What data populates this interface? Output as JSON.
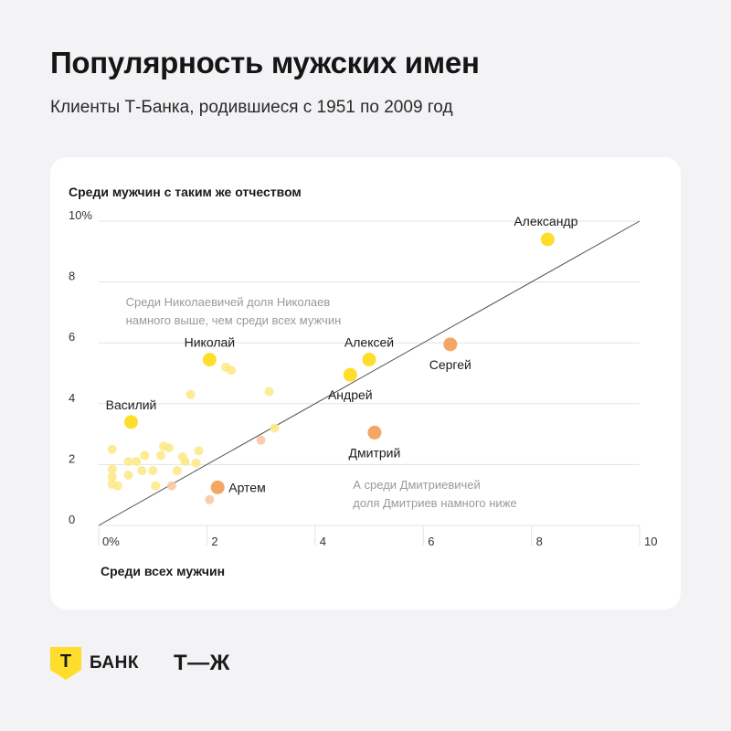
{
  "header": {
    "title": "Популярность мужских имен",
    "subtitle": "Клиенты Т-Банка, родившиеся с 1951 по 2009 год"
  },
  "footer": {
    "tbank_mark": "Т",
    "tbank_name": "БАНК",
    "tj_logo": "Т—Ж"
  },
  "colors": {
    "yellow": "#ffdd2d",
    "orange": "#f5a664",
    "faint_yellow": "#fde98a",
    "faint_orange": "#f8c9a7",
    "gridline": "#e3e3e3",
    "diagonal": "#555555",
    "annotation": "#9a9a9a"
  },
  "chart_data": {
    "type": "scatter",
    "title": "",
    "ylabel": "Среди мужчин с таким же отчеством",
    "xlabel": "Среди всех мужчин",
    "xlim": [
      0,
      10
    ],
    "ylim": [
      0,
      10
    ],
    "x_ticks": [
      {
        "value": 0,
        "label": "0%"
      },
      {
        "value": 2,
        "label": "2"
      },
      {
        "value": 4,
        "label": "4"
      },
      {
        "value": 6,
        "label": "6"
      },
      {
        "value": 8,
        "label": "8"
      },
      {
        "value": 10,
        "label": "10"
      }
    ],
    "y_ticks": [
      {
        "value": 0,
        "label": "0"
      },
      {
        "value": 2,
        "label": "2"
      },
      {
        "value": 4,
        "label": "4"
      },
      {
        "value": 6,
        "label": "6"
      },
      {
        "value": 8,
        "label": "8"
      },
      {
        "value": 10,
        "label": "10%"
      }
    ],
    "reference_line": {
      "type": "diagonal",
      "from": [
        0,
        0
      ],
      "to": [
        10,
        10
      ]
    },
    "points": [
      {
        "name": "Александр",
        "x": 8.3,
        "y": 9.4,
        "color": "yellow",
        "label_pos": "above-left"
      },
      {
        "name": "Николай",
        "x": 2.05,
        "y": 5.45,
        "color": "yellow",
        "label_pos": "above"
      },
      {
        "name": "Алексей",
        "x": 5.0,
        "y": 5.45,
        "color": "yellow",
        "label_pos": "above"
      },
      {
        "name": "Андрей",
        "x": 4.65,
        "y": 4.95,
        "color": "yellow",
        "label_pos": "below"
      },
      {
        "name": "Василий",
        "x": 0.6,
        "y": 3.4,
        "color": "yellow",
        "label_pos": "above"
      },
      {
        "name": "Сергей",
        "x": 6.5,
        "y": 5.95,
        "color": "orange",
        "label_pos": "below"
      },
      {
        "name": "Дмитрий",
        "x": 5.1,
        "y": 3.05,
        "color": "orange",
        "label_pos": "below"
      },
      {
        "name": "Артем",
        "x": 2.2,
        "y": 1.25,
        "color": "orange",
        "label_pos": "right"
      }
    ],
    "minor_points": [
      {
        "x": 1.7,
        "y": 4.3,
        "color": "faint_yellow"
      },
      {
        "x": 2.35,
        "y": 5.2,
        "color": "faint_yellow"
      },
      {
        "x": 2.45,
        "y": 5.1,
        "color": "faint_yellow"
      },
      {
        "x": 3.15,
        "y": 4.4,
        "color": "faint_yellow"
      },
      {
        "x": 3.25,
        "y": 3.2,
        "color": "faint_yellow"
      },
      {
        "x": 3.0,
        "y": 2.8,
        "color": "faint_orange"
      },
      {
        "x": 2.05,
        "y": 0.85,
        "color": "faint_orange"
      },
      {
        "x": 1.35,
        "y": 1.3,
        "color": "faint_orange"
      },
      {
        "x": 0.25,
        "y": 2.5,
        "color": "faint_yellow"
      },
      {
        "x": 0.25,
        "y": 1.85,
        "color": "faint_yellow"
      },
      {
        "x": 0.25,
        "y": 1.6,
        "color": "faint_yellow"
      },
      {
        "x": 0.25,
        "y": 1.35,
        "color": "faint_yellow"
      },
      {
        "x": 0.35,
        "y": 1.3,
        "color": "faint_yellow"
      },
      {
        "x": 0.55,
        "y": 2.1,
        "color": "faint_yellow"
      },
      {
        "x": 0.55,
        "y": 1.65,
        "color": "faint_yellow"
      },
      {
        "x": 0.7,
        "y": 2.1,
        "color": "faint_yellow"
      },
      {
        "x": 0.8,
        "y": 1.8,
        "color": "faint_yellow"
      },
      {
        "x": 0.85,
        "y": 2.3,
        "color": "faint_yellow"
      },
      {
        "x": 1.0,
        "y": 1.8,
        "color": "faint_yellow"
      },
      {
        "x": 1.05,
        "y": 1.3,
        "color": "faint_yellow"
      },
      {
        "x": 1.15,
        "y": 2.3,
        "color": "faint_yellow"
      },
      {
        "x": 1.2,
        "y": 2.6,
        "color": "faint_yellow"
      },
      {
        "x": 1.3,
        "y": 2.55,
        "color": "faint_yellow"
      },
      {
        "x": 1.45,
        "y": 1.8,
        "color": "faint_yellow"
      },
      {
        "x": 1.55,
        "y": 2.25,
        "color": "faint_yellow"
      },
      {
        "x": 1.6,
        "y": 2.1,
        "color": "faint_yellow"
      },
      {
        "x": 1.8,
        "y": 2.05,
        "color": "faint_yellow"
      },
      {
        "x": 1.85,
        "y": 2.45,
        "color": "faint_yellow"
      }
    ],
    "annotations": [
      {
        "lines": [
          "Среди Николаевичей доля Николаев",
          "намного выше, чем среди всех мужчин"
        ],
        "x": 0.5,
        "y": 7.2
      },
      {
        "lines": [
          "А среди Дмитриевичей",
          "доля Дмитриев намного ниже"
        ],
        "x": 4.7,
        "y": 1.2
      }
    ],
    "grid": true
  }
}
